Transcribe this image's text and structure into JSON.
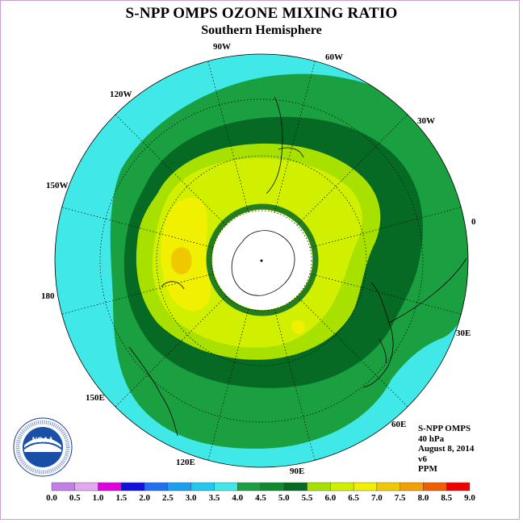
{
  "title": "S-NPP OMPS OZONE MIXING RATIO",
  "subtitle": "Southern Hemisphere",
  "longitude_labels": [
    "90W",
    "60W",
    "30W",
    "0",
    "30E",
    "60E",
    "90E",
    "120E",
    "150E",
    "180",
    "150W",
    "120W"
  ],
  "info": {
    "instrument": "S-NPP OMPS",
    "level": "40 hPa",
    "date": "August 8, 2014",
    "version": "v6",
    "units": "PPM"
  },
  "logo": {
    "text": "NOAA",
    "ring_text": "NATIONAL OCEANIC AND ATMOSPHERIC ADMINISTRATION · U.S. DEPARTMENT OF COMMERCE"
  },
  "color_scale": {
    "ticks": [
      "0.0",
      "0.5",
      "1.0",
      "1.5",
      "2.0",
      "2.5",
      "3.0",
      "3.5",
      "4.0",
      "4.5",
      "5.0",
      "5.5",
      "6.0",
      "6.5",
      "7.0",
      "7.5",
      "8.0",
      "8.5",
      "9.0"
    ],
    "colors": [
      "#c080e8",
      "#e0a8f0",
      "#e000e0",
      "#1010e0",
      "#2070f0",
      "#1aa0f0",
      "#20c8f0",
      "#40e8e8",
      "#1aa040",
      "#108a30",
      "#066a24",
      "#a8e000",
      "#d0f000",
      "#f0f000",
      "#f0c800",
      "#f0a000",
      "#f06000",
      "#f00000",
      "#8a5030"
    ]
  }
}
